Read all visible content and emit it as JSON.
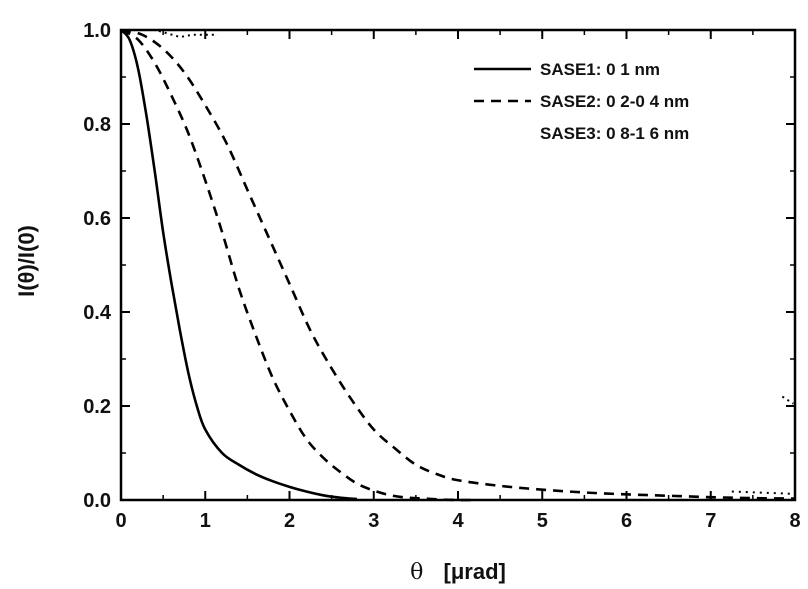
{
  "chart_data": {
    "type": "line",
    "title": "",
    "xlabel_symbol": "θ",
    "xlabel_unit": "[μrad]",
    "ylabel": "I(θ)/I(0)",
    "xlim": [
      0,
      8
    ],
    "ylim": [
      0,
      1.0
    ],
    "x_ticks": [
      "0",
      "1",
      "2",
      "3",
      "4",
      "5",
      "6",
      "7",
      "8"
    ],
    "y_ticks": [
      "0.0",
      "0.2",
      "0.4",
      "0.6",
      "0.8",
      "1.0"
    ],
    "grid": false,
    "legend_position": "top-right",
    "series": [
      {
        "name": "SASE1: 0 1 nm",
        "style": "solid",
        "color": "#000000",
        "x": [
          0,
          0.1,
          0.2,
          0.3,
          0.4,
          0.5,
          0.6,
          0.7,
          0.8,
          0.9,
          1.0,
          1.2,
          1.4,
          1.6,
          1.8,
          2.0,
          2.2,
          2.4,
          2.6,
          2.8
        ],
        "y": [
          1.0,
          0.98,
          0.92,
          0.82,
          0.7,
          0.57,
          0.46,
          0.36,
          0.27,
          0.2,
          0.15,
          0.1,
          0.075,
          0.055,
          0.04,
          0.028,
          0.018,
          0.01,
          0.005,
          0.002
        ]
      },
      {
        "name": "SASE2: 0 2-0 4 nm",
        "style": "dashed",
        "color": "#000000",
        "x": [
          0,
          0.2,
          0.4,
          0.6,
          0.8,
          1.0,
          1.2,
          1.4,
          1.6,
          1.8,
          2.0,
          2.2,
          2.4,
          2.6,
          2.8,
          3.0,
          3.2,
          3.4,
          3.6,
          3.8,
          4.0,
          4.2
        ],
        "y": [
          1.0,
          0.98,
          0.93,
          0.86,
          0.78,
          0.68,
          0.57,
          0.45,
          0.35,
          0.26,
          0.19,
          0.13,
          0.09,
          0.06,
          0.035,
          0.02,
          0.01,
          0.005,
          0.003,
          0.001,
          0.0,
          0.0
        ]
      },
      {
        "name": "SASE3: 0 8-1 6 nm",
        "style": "dashed",
        "color": "#000000",
        "x": [
          0,
          0.25,
          0.5,
          0.75,
          1.0,
          1.25,
          1.5,
          1.75,
          2.0,
          2.25,
          2.5,
          2.75,
          3.0,
          3.25,
          3.5,
          3.75,
          4.0,
          4.5,
          5.0,
          5.5,
          6.0,
          6.5,
          7.0,
          7.5,
          8.0
        ],
        "y": [
          1.0,
          0.99,
          0.96,
          0.91,
          0.84,
          0.76,
          0.66,
          0.56,
          0.46,
          0.36,
          0.28,
          0.21,
          0.15,
          0.11,
          0.075,
          0.055,
          0.042,
          0.03,
          0.022,
          0.016,
          0.012,
          0.009,
          0.006,
          0.004,
          0.003
        ]
      }
    ],
    "colors": {
      "line": "#000000",
      "axis": "#000000",
      "background": "#ffffff"
    }
  }
}
